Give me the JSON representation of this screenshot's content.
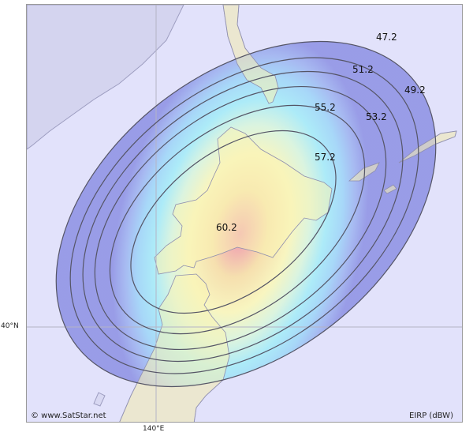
{
  "map": {
    "lat_label": "40°N",
    "lon_label": "140°E",
    "credit": "© www.SatStar.net",
    "unit_label": "EIRP (dBW)",
    "colors": {
      "sea": "#e2e2fb",
      "land": "#d8d8f2",
      "coastline": "#9d9dc0",
      "contour_line": "#555566",
      "graticule": "#b8b8c8"
    }
  },
  "contours": {
    "unit": "dBW",
    "levels": [
      {
        "label": "60.2"
      },
      {
        "label": "57.2"
      },
      {
        "label": "55.2"
      },
      {
        "label": "53.2"
      },
      {
        "label": "51.2"
      },
      {
        "label": "49.2"
      },
      {
        "label": "47.2"
      }
    ]
  }
}
